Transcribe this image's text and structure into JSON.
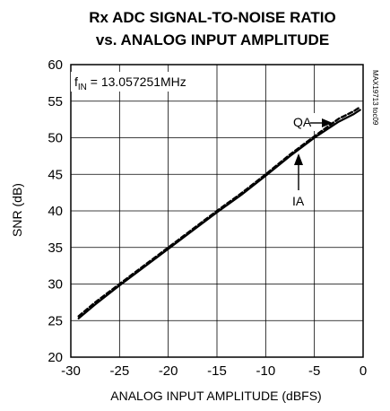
{
  "chart_data": {
    "type": "line",
    "title": "Rx ADC SIGNAL-TO-NOISE RATIO",
    "subtitle": "vs. ANALOG INPUT AMPLITUDE",
    "xlabel": "ANALOG INPUT AMPLITUDE (dBFS)",
    "ylabel": "SNR (dB)",
    "xlim": [
      -30,
      0
    ],
    "ylim": [
      20,
      60
    ],
    "xticks": [
      -30,
      -25,
      -20,
      -15,
      -10,
      -5,
      0
    ],
    "yticks": [
      20,
      25,
      30,
      35,
      40,
      45,
      50,
      55,
      60
    ],
    "grid": true,
    "annotation_fin": {
      "main": "f",
      "sub": "IN",
      "rest": " = 13.057251MHz"
    },
    "side_label": "MAX19713 toc09",
    "labels": {
      "qa": "QA",
      "ia": "IA"
    },
    "series": [
      {
        "name": "IA",
        "style": "solid",
        "x": [
          -29.2,
          -27.5,
          -25,
          -22.5,
          -20,
          -17.5,
          -15,
          -12.5,
          -10,
          -7.5,
          -5,
          -2.5,
          -1,
          -0.3
        ],
        "y": [
          25.3,
          27.2,
          29.8,
          32.3,
          34.8,
          37.3,
          39.8,
          42.2,
          44.8,
          47.5,
          50.0,
          52.2,
          53.2,
          53.8
        ]
      },
      {
        "name": "QA",
        "style": "dashed",
        "x": [
          -29.2,
          -27.5,
          -25,
          -22.5,
          -20,
          -17.5,
          -15,
          -12.5,
          -10,
          -7.5,
          -5,
          -2.5,
          -1,
          -0.3
        ],
        "y": [
          25.6,
          27.5,
          30.0,
          32.5,
          35.0,
          37.5,
          40.0,
          42.4,
          45.0,
          47.7,
          50.2,
          52.6,
          53.6,
          54.2
        ]
      }
    ]
  }
}
